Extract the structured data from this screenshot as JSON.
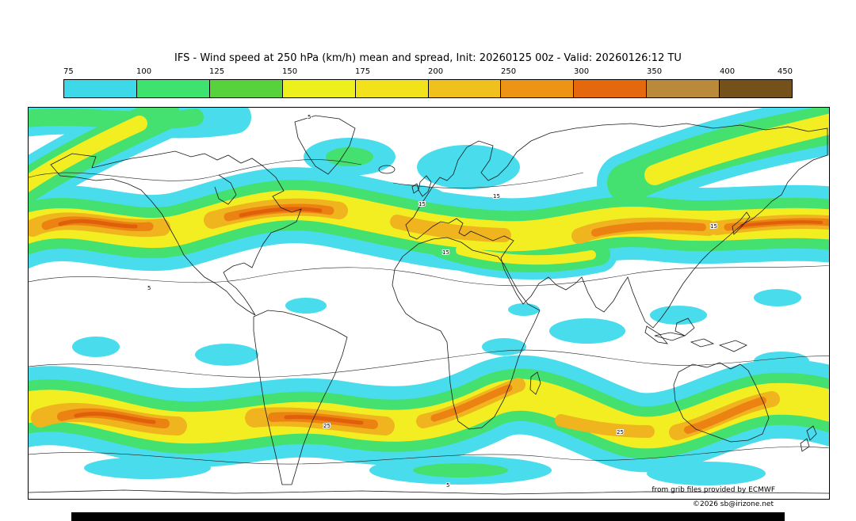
{
  "header": {
    "title": "IFS - Wind speed at 250 hPa (km/h) mean and spread, Init: 20260125 00z - Valid: 20260126:12 TU"
  },
  "colorbar": {
    "ticks": [
      "75",
      "100",
      "125",
      "150",
      "175",
      "200",
      "250",
      "300",
      "350",
      "400",
      "450"
    ],
    "segment_colors": [
      "#3ed9e8",
      "#3ee26e",
      "#58d23c",
      "#eef01e",
      "#f2e21c",
      "#f0c01c",
      "#ee9414",
      "#e5680c",
      "#b98a3a",
      "#74511a"
    ]
  },
  "map": {
    "band_colors": {
      "cyan": "#48dcec",
      "green": "#44e070",
      "yellow": "#f2ee22",
      "gold": "#f0b41e",
      "orange": "#ec8212",
      "core": "#df5f0a"
    },
    "contour_labels": [
      "5",
      "15",
      "15",
      "15",
      "25",
      "5",
      "25",
      "5",
      "15"
    ]
  },
  "footer": {
    "grib_credit": "from grib files provided by ECMWF",
    "copyright": "©2026 sb@irizone.net"
  }
}
